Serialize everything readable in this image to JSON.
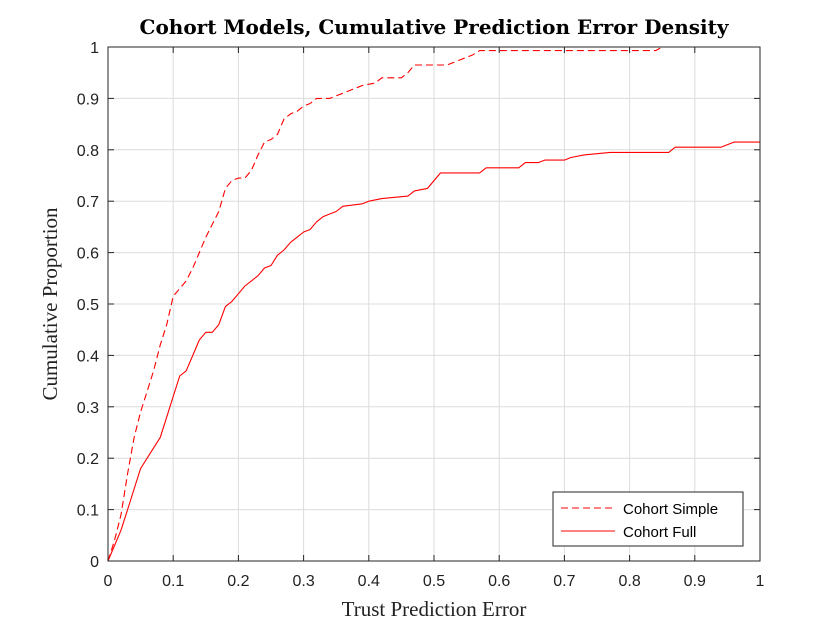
{
  "chart_data": {
    "type": "line",
    "title": "Cohort Models, Cumulative Prediction Error Density",
    "xlabel": "Trust Prediction Error",
    "ylabel": "Cumulative Proportion",
    "xlim": [
      0,
      1
    ],
    "ylim": [
      0,
      1
    ],
    "xticks": [
      0,
      0.1,
      0.2,
      0.3,
      0.4,
      0.5,
      0.6,
      0.7,
      0.8,
      0.9,
      1
    ],
    "yticks": [
      0,
      0.1,
      0.2,
      0.3,
      0.4,
      0.5,
      0.6,
      0.7,
      0.8,
      0.9,
      1
    ],
    "xtick_labels": [
      "0",
      "0.1",
      "0.2",
      "0.3",
      "0.4",
      "0.5",
      "0.6",
      "0.7",
      "0.8",
      "0.9",
      "1"
    ],
    "ytick_labels": [
      "0",
      "0.1",
      "0.2",
      "0.3",
      "0.4",
      "0.5",
      "0.6",
      "0.7",
      "0.8",
      "0.9",
      "1"
    ],
    "grid": true,
    "legend": "bottom-right",
    "series": [
      {
        "name": "Cohort Simple",
        "color": "#ff0000",
        "dash": "dashed",
        "points": [
          [
            0,
            0
          ],
          [
            0.01,
            0.04
          ],
          [
            0.02,
            0.09
          ],
          [
            0.03,
            0.17
          ],
          [
            0.04,
            0.24
          ],
          [
            0.05,
            0.29
          ],
          [
            0.06,
            0.33
          ],
          [
            0.07,
            0.37
          ],
          [
            0.08,
            0.42
          ],
          [
            0.09,
            0.46
          ],
          [
            0.1,
            0.515
          ],
          [
            0.11,
            0.53
          ],
          [
            0.12,
            0.545
          ],
          [
            0.13,
            0.57
          ],
          [
            0.14,
            0.6
          ],
          [
            0.15,
            0.63
          ],
          [
            0.16,
            0.655
          ],
          [
            0.17,
            0.68
          ],
          [
            0.18,
            0.725
          ],
          [
            0.19,
            0.74
          ],
          [
            0.2,
            0.745
          ],
          [
            0.21,
            0.745
          ],
          [
            0.22,
            0.76
          ],
          [
            0.23,
            0.79
          ],
          [
            0.24,
            0.815
          ],
          [
            0.25,
            0.82
          ],
          [
            0.26,
            0.83
          ],
          [
            0.27,
            0.86
          ],
          [
            0.28,
            0.87
          ],
          [
            0.29,
            0.875
          ],
          [
            0.3,
            0.885
          ],
          [
            0.31,
            0.89
          ],
          [
            0.32,
            0.9
          ],
          [
            0.34,
            0.9
          ],
          [
            0.35,
            0.905
          ],
          [
            0.36,
            0.91
          ],
          [
            0.38,
            0.92
          ],
          [
            0.39,
            0.925
          ],
          [
            0.41,
            0.93
          ],
          [
            0.42,
            0.94
          ],
          [
            0.45,
            0.94
          ],
          [
            0.46,
            0.95
          ],
          [
            0.47,
            0.965
          ],
          [
            0.52,
            0.965
          ],
          [
            0.54,
            0.975
          ],
          [
            0.56,
            0.985
          ],
          [
            0.57,
            0.993
          ],
          [
            0.84,
            0.993
          ],
          [
            0.85,
            1.0
          ],
          [
            1.0,
            1.0
          ]
        ]
      },
      {
        "name": "Cohort Full",
        "color": "#ff0000",
        "dash": "solid",
        "points": [
          [
            0,
            0
          ],
          [
            0.01,
            0.03
          ],
          [
            0.02,
            0.06
          ],
          [
            0.03,
            0.1
          ],
          [
            0.04,
            0.14
          ],
          [
            0.05,
            0.18
          ],
          [
            0.06,
            0.2
          ],
          [
            0.07,
            0.22
          ],
          [
            0.08,
            0.24
          ],
          [
            0.09,
            0.28
          ],
          [
            0.1,
            0.32
          ],
          [
            0.11,
            0.36
          ],
          [
            0.12,
            0.37
          ],
          [
            0.13,
            0.4
          ],
          [
            0.14,
            0.43
          ],
          [
            0.15,
            0.445
          ],
          [
            0.16,
            0.445
          ],
          [
            0.17,
            0.46
          ],
          [
            0.18,
            0.495
          ],
          [
            0.19,
            0.505
          ],
          [
            0.2,
            0.52
          ],
          [
            0.21,
            0.535
          ],
          [
            0.22,
            0.545
          ],
          [
            0.23,
            0.555
          ],
          [
            0.24,
            0.57
          ],
          [
            0.25,
            0.575
          ],
          [
            0.26,
            0.595
          ],
          [
            0.27,
            0.605
          ],
          [
            0.28,
            0.62
          ],
          [
            0.29,
            0.63
          ],
          [
            0.3,
            0.64
          ],
          [
            0.31,
            0.645
          ],
          [
            0.32,
            0.66
          ],
          [
            0.33,
            0.67
          ],
          [
            0.34,
            0.675
          ],
          [
            0.35,
            0.68
          ],
          [
            0.36,
            0.69
          ],
          [
            0.39,
            0.695
          ],
          [
            0.4,
            0.7
          ],
          [
            0.42,
            0.705
          ],
          [
            0.46,
            0.71
          ],
          [
            0.47,
            0.72
          ],
          [
            0.49,
            0.725
          ],
          [
            0.5,
            0.74
          ],
          [
            0.51,
            0.755
          ],
          [
            0.57,
            0.755
          ],
          [
            0.58,
            0.765
          ],
          [
            0.63,
            0.765
          ],
          [
            0.64,
            0.775
          ],
          [
            0.66,
            0.775
          ],
          [
            0.67,
            0.78
          ],
          [
            0.7,
            0.78
          ],
          [
            0.71,
            0.785
          ],
          [
            0.73,
            0.79
          ],
          [
            0.77,
            0.795
          ],
          [
            0.86,
            0.795
          ],
          [
            0.87,
            0.805
          ],
          [
            0.94,
            0.805
          ],
          [
            0.96,
            0.815
          ],
          [
            1.0,
            0.815
          ]
        ]
      }
    ]
  }
}
